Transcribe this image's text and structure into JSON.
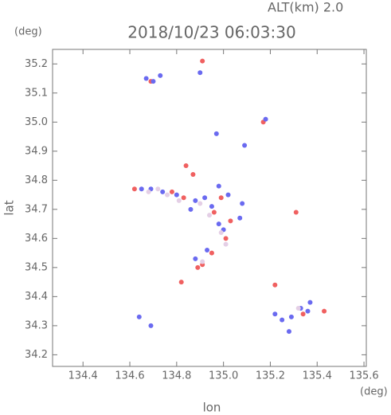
{
  "chart_data": {
    "type": "scatter",
    "subtitle": "ALT(km)  2.0",
    "title": "2018/10/23 06:03:30",
    "y_unit": "(deg)",
    "x_unit": "(deg)",
    "x_label": "lon",
    "y_label": "lat",
    "xlim": [
      134.27,
      135.61
    ],
    "ylim": [
      34.16,
      35.25
    ],
    "xticks": [
      134.4,
      134.6,
      134.8,
      {
        "value": 135.0,
        "label": "135.0"
      },
      135.2,
      135.4,
      135.6
    ],
    "yticks": [
      34.2,
      34.3,
      34.4,
      34.5,
      34.6,
      34.7,
      34.8,
      34.9,
      {
        "value": 35.0,
        "label": "35.0"
      },
      35.1,
      35.2
    ],
    "series": [
      {
        "color": "#f06060",
        "x": [
          134.91,
          134.69,
          134.84,
          134.87,
          134.62,
          134.78,
          134.83,
          134.96,
          135.03,
          135.01,
          134.89,
          134.91,
          135.31,
          135.34,
          135.43,
          135.22,
          134.82,
          135.17,
          134.99,
          134.95
        ],
        "y": [
          35.21,
          35.14,
          34.85,
          34.82,
          34.77,
          34.76,
          34.74,
          34.69,
          34.66,
          34.6,
          34.5,
          34.51,
          34.69,
          34.34,
          34.35,
          34.44,
          34.45,
          35.0,
          34.74,
          34.55
        ]
      },
      {
        "color": "#6a6af0",
        "x": [
          134.7,
          134.67,
          134.73,
          134.9,
          134.65,
          134.69,
          134.74,
          134.8,
          134.88,
          134.92,
          134.95,
          134.86,
          134.98,
          135.0,
          134.93,
          134.88,
          135.22,
          135.25,
          135.29,
          135.33,
          135.37,
          135.36,
          135.18,
          135.09,
          134.97,
          135.02,
          135.07,
          135.28,
          134.69,
          134.64,
          134.98,
          135.08
        ],
        "y": [
          35.14,
          35.15,
          35.16,
          35.17,
          34.77,
          34.77,
          34.76,
          34.75,
          34.73,
          34.74,
          34.71,
          34.7,
          34.65,
          34.63,
          34.56,
          34.53,
          34.34,
          34.32,
          34.33,
          34.36,
          34.38,
          34.35,
          35.01,
          34.92,
          34.96,
          34.75,
          34.67,
          34.28,
          34.3,
          34.33,
          34.78,
          34.72
        ]
      },
      {
        "color": "#e4cfe6",
        "x": [
          134.72,
          134.76,
          134.81,
          134.9,
          134.94,
          134.99,
          135.01,
          134.91,
          135.32,
          134.68
        ],
        "y": [
          34.77,
          34.75,
          34.73,
          34.72,
          34.68,
          34.62,
          34.58,
          34.52,
          34.36,
          34.76
        ]
      }
    ]
  }
}
